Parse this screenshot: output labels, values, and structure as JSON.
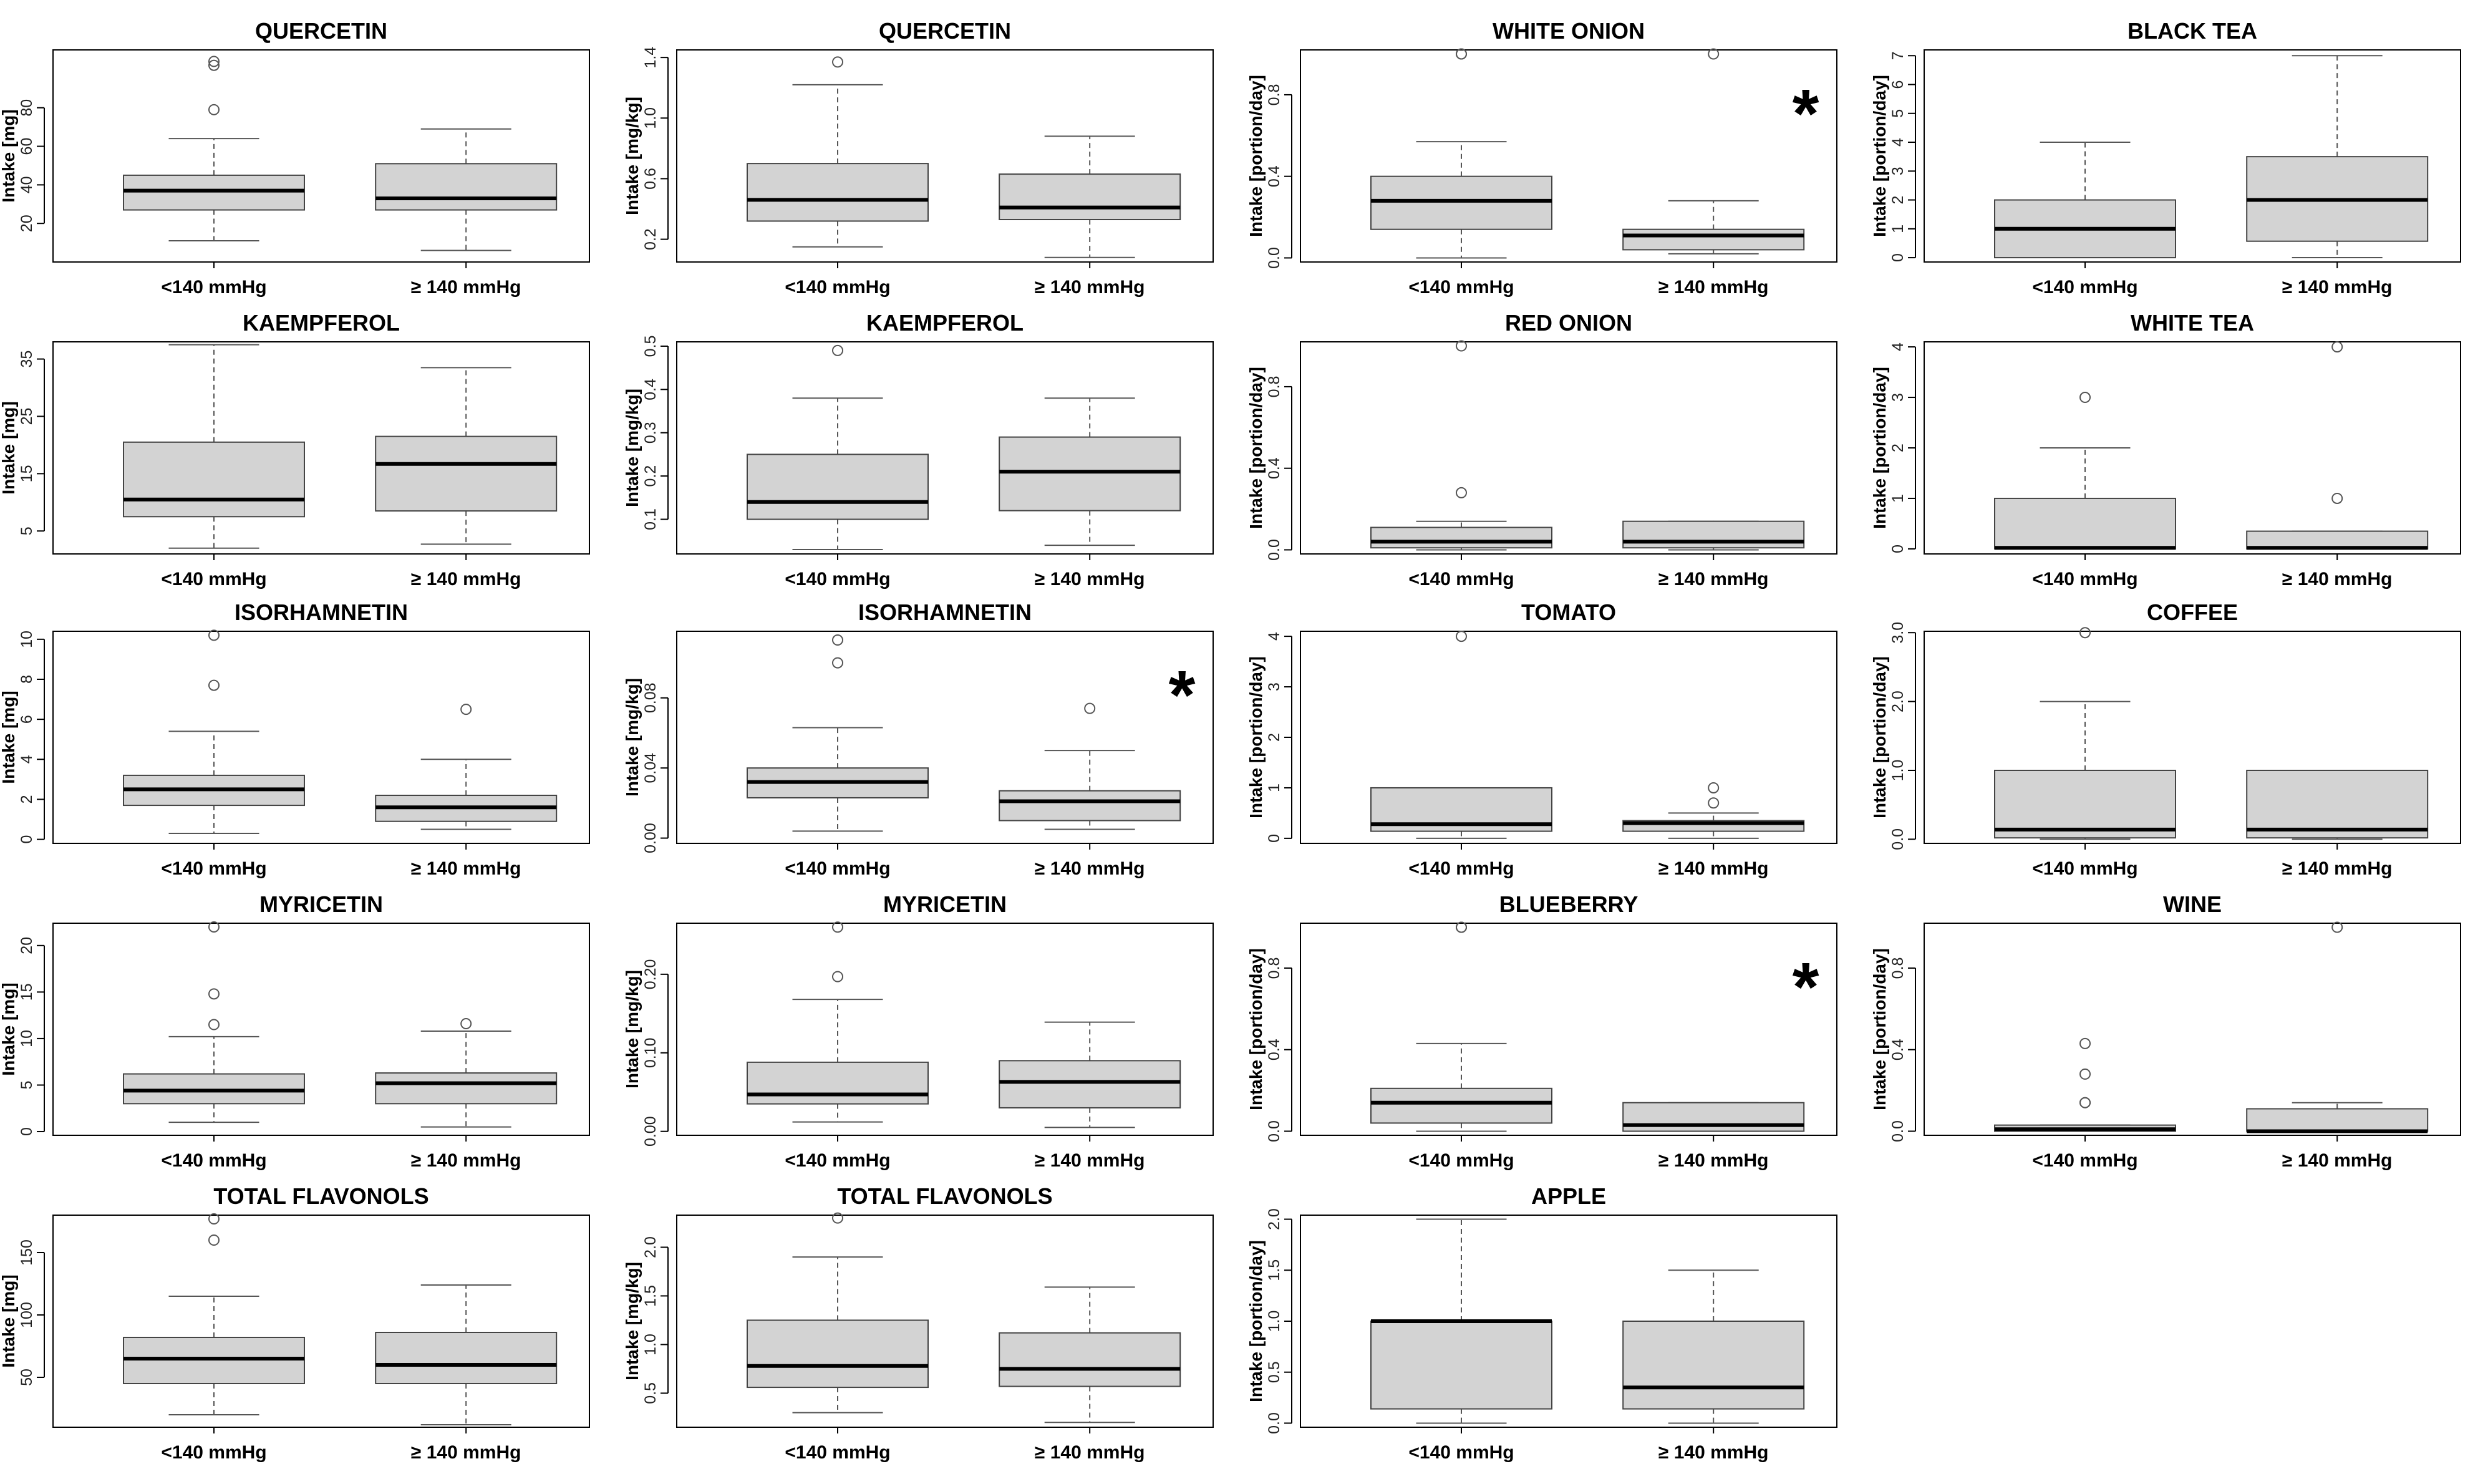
{
  "figure": {
    "groups": [
      "<140 mmHg",
      "≥ 140 mmHg"
    ],
    "box_fill": "#d3d3d3",
    "significance_marker": "*"
  },
  "chart_data": [
    {
      "id": "quercetin_mg",
      "type": "boxplot",
      "title": "QUERCETIN",
      "ylabel": "Intake [mg]",
      "ylim": [
        0,
        110
      ],
      "yticks": [
        20,
        40,
        60,
        80
      ],
      "significant": false,
      "boxes": [
        {
          "group": "<140 mmHg",
          "whisker_low": 11,
          "q1": 27,
          "median": 37,
          "q3": 45,
          "whisker_high": 64,
          "outliers": [
            79,
            102,
            104
          ]
        },
        {
          "group": "≥ 140 mmHg",
          "whisker_low": 6,
          "q1": 27,
          "median": 33,
          "q3": 51,
          "whisker_high": 69,
          "outliers": []
        }
      ]
    },
    {
      "id": "quercetin_mgkg",
      "type": "boxplot",
      "title": "QUERCETIN",
      "ylabel": "Intake [mg/kg]",
      "ylim": [
        0.05,
        1.45
      ],
      "yticks": [
        0.2,
        0.6,
        1.0,
        1.4
      ],
      "yticklabels": [
        "0.2",
        "0.6",
        "1.0",
        "1.4"
      ],
      "significant": false,
      "boxes": [
        {
          "group": "<140 mmHg",
          "whisker_low": 0.15,
          "q1": 0.32,
          "median": 0.46,
          "q3": 0.7,
          "whisker_high": 1.22,
          "outliers": [
            1.37
          ]
        },
        {
          "group": "≥ 140 mmHg",
          "whisker_low": 0.08,
          "q1": 0.33,
          "median": 0.41,
          "q3": 0.63,
          "whisker_high": 0.88,
          "outliers": []
        }
      ]
    },
    {
      "id": "white_onion",
      "type": "boxplot",
      "title": "WHITE ONION",
      "ylabel": "Intake [portion/day]",
      "ylim": [
        -0.02,
        1.02
      ],
      "yticks": [
        0,
        0.4,
        0.8
      ],
      "yticklabels": [
        "0.0",
        "0.4",
        "0.8"
      ],
      "significant": true,
      "boxes": [
        {
          "group": "<140 mmHg",
          "whisker_low": 0,
          "q1": 0.14,
          "median": 0.28,
          "q3": 0.4,
          "whisker_high": 0.57,
          "outliers": [
            1.0,
            1.0
          ]
        },
        {
          "group": "≥ 140 mmHg",
          "whisker_low": 0.02,
          "q1": 0.04,
          "median": 0.11,
          "q3": 0.14,
          "whisker_high": 0.28,
          "outliers": [
            1.0
          ]
        }
      ]
    },
    {
      "id": "black_tea",
      "type": "boxplot",
      "title": "BLACK TEA",
      "ylabel": "Intake [portion/day]",
      "ylim": [
        -0.15,
        7.2
      ],
      "yticks": [
        0,
        1,
        2,
        3,
        4,
        5,
        6,
        7
      ],
      "significant": false,
      "boxes": [
        {
          "group": "<140 mmHg",
          "whisker_low": 0,
          "q1": 0,
          "median": 1,
          "q3": 2,
          "whisker_high": 4,
          "outliers": []
        },
        {
          "group": "≥ 140 mmHg",
          "whisker_low": 0,
          "q1": 0.57,
          "median": 2,
          "q3": 3.5,
          "whisker_high": 7,
          "outliers": []
        }
      ]
    },
    {
      "id": "kaempferol_mg",
      "type": "boxplot",
      "title": "KAEMPFEROL",
      "ylabel": "Intake [mg]",
      "ylim": [
        1,
        38
      ],
      "yticks": [
        5,
        15,
        25,
        35
      ],
      "significant": false,
      "boxes": [
        {
          "group": "<140 mmHg",
          "whisker_low": 2,
          "q1": 7.5,
          "median": 10.5,
          "q3": 20.5,
          "whisker_high": 37.5,
          "outliers": []
        },
        {
          "group": "≥ 140 mmHg",
          "whisker_low": 2.7,
          "q1": 8.5,
          "median": 16.7,
          "q3": 21.5,
          "whisker_high": 33.5,
          "outliers": []
        }
      ]
    },
    {
      "id": "kaempferol_mgkg",
      "type": "boxplot",
      "title": "KAEMPFEROL",
      "ylabel": "Intake [mg/kg]",
      "ylim": [
        0.02,
        0.51
      ],
      "yticks": [
        0.1,
        0.2,
        0.3,
        0.4,
        0.5
      ],
      "significant": false,
      "boxes": [
        {
          "group": "<140 mmHg",
          "whisker_low": 0.03,
          "q1": 0.1,
          "median": 0.14,
          "q3": 0.25,
          "whisker_high": 0.38,
          "outliers": [
            0.49
          ]
        },
        {
          "group": "≥ 140 mmHg",
          "whisker_low": 0.04,
          "q1": 0.12,
          "median": 0.21,
          "q3": 0.29,
          "whisker_high": 0.38,
          "outliers": []
        }
      ]
    },
    {
      "id": "red_onion",
      "type": "boxplot",
      "title": "RED ONION",
      "ylabel": "Intake [portion/day]",
      "ylim": [
        -0.02,
        1.02
      ],
      "yticks": [
        0,
        0.4,
        0.8
      ],
      "yticklabels": [
        "0.0",
        "0.4",
        "0.8"
      ],
      "significant": false,
      "boxes": [
        {
          "group": "<140 mmHg",
          "whisker_low": 0,
          "q1": 0.01,
          "median": 0.04,
          "q3": 0.11,
          "whisker_high": 0.14,
          "outliers": [
            0.28,
            1.0
          ]
        },
        {
          "group": "≥ 140 mmHg",
          "whisker_low": 0,
          "q1": 0.01,
          "median": 0.04,
          "q3": 0.14,
          "whisker_high": 0.14,
          "outliers": []
        }
      ]
    },
    {
      "id": "white_tea",
      "type": "boxplot",
      "title": "WHITE TEA",
      "ylabel": "Intake [portion/day]",
      "ylim": [
        -0.1,
        4.1
      ],
      "yticks": [
        0,
        1,
        2,
        3,
        4
      ],
      "significant": false,
      "boxes": [
        {
          "group": "<140 mmHg",
          "whisker_low": 0,
          "q1": 0,
          "median": 0.02,
          "q3": 1,
          "whisker_high": 2,
          "outliers": [
            3
          ]
        },
        {
          "group": "≥ 140 mmHg",
          "whisker_low": 0,
          "q1": 0,
          "median": 0.02,
          "q3": 0.35,
          "whisker_high": 0.35,
          "outliers": [
            1,
            4
          ]
        }
      ]
    },
    {
      "id": "isorhamnetin_mg",
      "type": "boxplot",
      "title": "ISORHAMNETIN",
      "ylabel": "Intake [mg]",
      "ylim": [
        -0.2,
        10.4
      ],
      "yticks": [
        0,
        2,
        4,
        6,
        8,
        10
      ],
      "significant": false,
      "boxes": [
        {
          "group": "<140 mmHg",
          "whisker_low": 0.3,
          "q1": 1.7,
          "median": 2.5,
          "q3": 3.2,
          "whisker_high": 5.4,
          "outliers": [
            7.7,
            10.2
          ]
        },
        {
          "group": "≥ 140 mmHg",
          "whisker_low": 0.5,
          "q1": 0.9,
          "median": 1.6,
          "q3": 2.2,
          "whisker_high": 4,
          "outliers": [
            6.5
          ]
        }
      ]
    },
    {
      "id": "isorhamnetin_mgkg",
      "type": "boxplot",
      "title": "ISORHAMNETIN",
      "ylabel": "Intake [mg/kg]",
      "ylim": [
        -0.003,
        0.118
      ],
      "yticks": [
        0,
        0.04,
        0.08
      ],
      "yticklabels": [
        "0.00",
        "0.04",
        "0.08"
      ],
      "significant": true,
      "boxes": [
        {
          "group": "<140 mmHg",
          "whisker_low": 0.004,
          "q1": 0.023,
          "median": 0.032,
          "q3": 0.04,
          "whisker_high": 0.063,
          "outliers": [
            0.1,
            0.113
          ]
        },
        {
          "group": "≥ 140 mmHg",
          "whisker_low": 0.005,
          "q1": 0.01,
          "median": 0.021,
          "q3": 0.027,
          "whisker_high": 0.05,
          "outliers": [
            0.074
          ]
        }
      ]
    },
    {
      "id": "tomato",
      "type": "boxplot",
      "title": "TOMATO",
      "ylabel": "Intake [portion/day]",
      "ylim": [
        -0.1,
        4.1
      ],
      "yticks": [
        0,
        1,
        2,
        3,
        4
      ],
      "significant": false,
      "boxes": [
        {
          "group": "<140 mmHg",
          "whisker_low": 0,
          "q1": 0.14,
          "median": 0.28,
          "q3": 1,
          "whisker_high": 1,
          "outliers": [
            4
          ]
        },
        {
          "group": "≥ 140 mmHg",
          "whisker_low": 0,
          "q1": 0.14,
          "median": 0.3,
          "q3": 0.35,
          "whisker_high": 0.5,
          "outliers": [
            0.7,
            1
          ]
        }
      ]
    },
    {
      "id": "coffee",
      "type": "boxplot",
      "title": "COFFEE",
      "ylabel": "Intake [portion/day]",
      "ylim": [
        -0.06,
        3.02
      ],
      "yticks": [
        0,
        1,
        2,
        3
      ],
      "yticklabels": [
        "0.0",
        "1.0",
        "2.0",
        "3.0"
      ],
      "significant": false,
      "boxes": [
        {
          "group": "<140 mmHg",
          "whisker_low": 0,
          "q1": 0.02,
          "median": 0.14,
          "q3": 1,
          "whisker_high": 2,
          "outliers": [
            3
          ]
        },
        {
          "group": "≥ 140 mmHg",
          "whisker_low": 0,
          "q1": 0.02,
          "median": 0.14,
          "q3": 1,
          "whisker_high": 1,
          "outliers": []
        }
      ]
    },
    {
      "id": "myricetin_mg",
      "type": "boxplot",
      "title": "MYRICETIN",
      "ylabel": "Intake [mg]",
      "ylim": [
        -0.4,
        22.4
      ],
      "yticks": [
        0,
        5,
        10,
        15,
        20
      ],
      "significant": false,
      "boxes": [
        {
          "group": "<140 mmHg",
          "whisker_low": 1,
          "q1": 3,
          "median": 4.4,
          "q3": 6.2,
          "whisker_high": 10.2,
          "outliers": [
            11.5,
            14.8,
            22
          ]
        },
        {
          "group": "≥ 140 mmHg",
          "whisker_low": 0.5,
          "q1": 3,
          "median": 5.2,
          "q3": 6.3,
          "whisker_high": 10.8,
          "outliers": [
            11.6
          ]
        }
      ]
    },
    {
      "id": "myricetin_mgkg",
      "type": "boxplot",
      "title": "MYRICETIN",
      "ylabel": "Intake [mg/kg]",
      "ylim": [
        -0.005,
        0.265
      ],
      "yticks": [
        0,
        0.1,
        0.2
      ],
      "yticklabels": [
        "0.00",
        "0.10",
        "0.20"
      ],
      "significant": false,
      "boxes": [
        {
          "group": "<140 mmHg",
          "whisker_low": 0.012,
          "q1": 0.035,
          "median": 0.047,
          "q3": 0.088,
          "whisker_high": 0.168,
          "outliers": [
            0.197,
            0.26
          ]
        },
        {
          "group": "≥ 140 mmHg",
          "whisker_low": 0.005,
          "q1": 0.03,
          "median": 0.063,
          "q3": 0.09,
          "whisker_high": 0.139,
          "outliers": []
        }
      ]
    },
    {
      "id": "blueberry",
      "type": "boxplot",
      "title": "BLUEBERRY",
      "ylabel": "Intake [portion/day]",
      "ylim": [
        -0.02,
        1.02
      ],
      "yticks": [
        0,
        0.4,
        0.8
      ],
      "yticklabels": [
        "0.0",
        "0.4",
        "0.8"
      ],
      "significant": true,
      "boxes": [
        {
          "group": "<140 mmHg",
          "whisker_low": 0,
          "q1": 0.04,
          "median": 0.14,
          "q3": 0.21,
          "whisker_high": 0.43,
          "outliers": [
            1.0,
            1.0
          ]
        },
        {
          "group": "≥ 140 mmHg",
          "whisker_low": 0,
          "q1": 0,
          "median": 0.03,
          "q3": 0.14,
          "whisker_high": 0.14,
          "outliers": []
        }
      ]
    },
    {
      "id": "wine",
      "type": "boxplot",
      "title": "WINE",
      "ylabel": "Intake [portion/day]",
      "ylim": [
        -0.02,
        1.02
      ],
      "yticks": [
        0,
        0.4,
        0.8
      ],
      "yticklabels": [
        "0.0",
        "0.4",
        "0.8"
      ],
      "significant": false,
      "boxes": [
        {
          "group": "<140 mmHg",
          "whisker_low": 0,
          "q1": 0,
          "median": 0.01,
          "q3": 0.03,
          "whisker_high": 0.03,
          "outliers": [
            0.14,
            0.14,
            0.28,
            0.43
          ]
        },
        {
          "group": "≥ 140 mmHg",
          "whisker_low": 0,
          "q1": 0,
          "median": 0,
          "q3": 0.11,
          "whisker_high": 0.14,
          "outliers": [
            1.0
          ]
        }
      ]
    },
    {
      "id": "total_flavonols_mg",
      "type": "boxplot",
      "title": "TOTAL FLAVONOLS",
      "ylabel": "Intake [mg]",
      "ylim": [
        10,
        180
      ],
      "yticks": [
        50,
        100,
        150
      ],
      "significant": false,
      "boxes": [
        {
          "group": "<140 mmHg",
          "whisker_low": 20,
          "q1": 45,
          "median": 65,
          "q3": 82,
          "whisker_high": 115,
          "outliers": [
            160,
            177
          ]
        },
        {
          "group": "≥ 140 mmHg",
          "whisker_low": 12,
          "q1": 45,
          "median": 60,
          "q3": 86,
          "whisker_high": 124,
          "outliers": []
        }
      ]
    },
    {
      "id": "total_flavonols_mgkg",
      "type": "boxplot",
      "title": "TOTAL FLAVONOLS",
      "ylabel": "Intake [mg/kg]",
      "ylim": [
        0.15,
        2.33
      ],
      "yticks": [
        0.5,
        1.0,
        1.5,
        2.0
      ],
      "yticklabels": [
        "0.5",
        "1.0",
        "1.5",
        "2.0"
      ],
      "significant": false,
      "boxes": [
        {
          "group": "<140 mmHg",
          "whisker_low": 0.3,
          "q1": 0.56,
          "median": 0.78,
          "q3": 1.25,
          "whisker_high": 1.9,
          "outliers": [
            2.3
          ]
        },
        {
          "group": "≥ 140 mmHg",
          "whisker_low": 0.2,
          "q1": 0.57,
          "median": 0.75,
          "q3": 1.12,
          "whisker_high": 1.59,
          "outliers": []
        }
      ]
    },
    {
      "id": "apple",
      "type": "boxplot",
      "title": "APPLE",
      "ylabel": "Intake [portion/day]",
      "ylim": [
        -0.04,
        2.04
      ],
      "yticks": [
        0,
        0.5,
        1,
        1.5,
        2
      ],
      "yticklabels": [
        "0.0",
        "0.5",
        "1.0",
        "1.5",
        "2.0"
      ],
      "significant": false,
      "boxes": [
        {
          "group": "<140 mmHg",
          "whisker_low": 0,
          "q1": 0.14,
          "median": 1,
          "q3": 1,
          "whisker_high": 2,
          "outliers": []
        },
        {
          "group": "≥ 140 mmHg",
          "whisker_low": 0,
          "q1": 0.14,
          "median": 0.35,
          "q3": 1,
          "whisker_high": 1.5,
          "outliers": []
        }
      ]
    }
  ]
}
